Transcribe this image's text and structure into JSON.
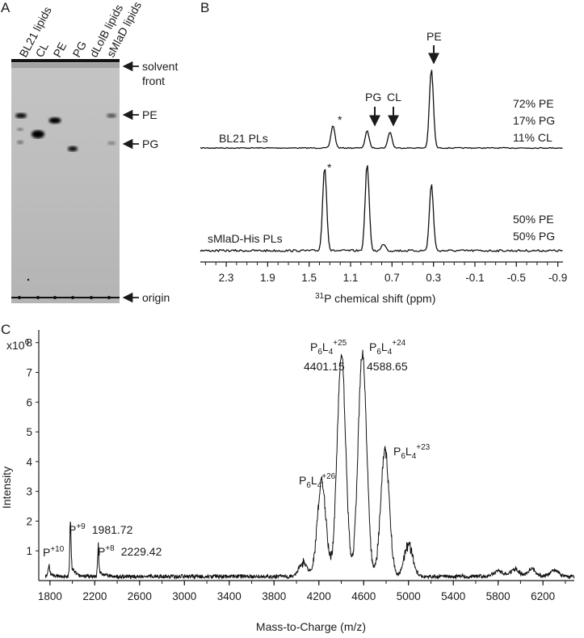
{
  "panel_labels": {
    "a": "A",
    "b": "B",
    "c": "C"
  },
  "panel_a": {
    "lane_labels": [
      "BL21 lipids",
      "CL",
      "PE",
      "PG",
      "dLolB lipids",
      "sMlaD lipids"
    ],
    "markers": {
      "solvent_front_1": "solvent",
      "solvent_front_2": "front",
      "pe": "PE",
      "pg": "PG",
      "origin": "origin"
    }
  },
  "panel_b": {
    "top_trace_label": "BL21 PLs",
    "bottom_trace_label": "sMlaD-His PLs",
    "peak_labels": {
      "pg": "PG",
      "cl": "CL",
      "pe": "PE",
      "star": "*"
    },
    "top_composition": [
      "72% PE",
      "17% PG",
      "11% CL"
    ],
    "bottom_composition": [
      "50% PE",
      "50% PG"
    ],
    "x_tick_labels": [
      "2.3",
      "1.9",
      "1.5",
      "1.1",
      "0.7",
      "0.3",
      "-0.1",
      "-0.5",
      "-0.9"
    ],
    "xlabel_sup": "31",
    "xlabel_rest": "P chemical shift (ppm)"
  },
  "panel_c": {
    "y_exponent_base": "x10",
    "y_exponent": "6",
    "ylabel": "Intensity",
    "xlabel": "Mass-to-Charge (m/z)",
    "annotations": [
      {
        "base": "P",
        "sup": "+10",
        "value": ""
      },
      {
        "base": "P",
        "sup": "+9",
        "value": "1981.72"
      },
      {
        "base": "P",
        "sup": "+8",
        "value": "2229.42"
      },
      {
        "base": "P",
        "sub1": "6",
        "mid": "L",
        "sub2": "4",
        "sup": "+26",
        "value": ""
      },
      {
        "base": "P",
        "sub1": "6",
        "mid": "L",
        "sub2": "4",
        "sup": "+25",
        "value": "4401.15"
      },
      {
        "base": "P",
        "sub1": "6",
        "mid": "L",
        "sub2": "4",
        "sup": "+24",
        "value": "4588.65"
      },
      {
        "base": "P",
        "sub1": "6",
        "mid": "L",
        "sub2": "4",
        "sup": "+23",
        "value": ""
      }
    ]
  },
  "chart_data": [
    {
      "type": "line",
      "panel": "B",
      "xlabel": "31P chemical shift (ppm)",
      "xlim": [
        2.55,
        -0.95
      ],
      "x_reversed": true,
      "x_ticks": [
        2.3,
        1.9,
        1.5,
        1.1,
        0.7,
        0.3,
        -0.1,
        -0.5,
        -0.9
      ],
      "series": [
        {
          "name": "BL21 PLs",
          "peaks": [
            {
              "ppm": 1.27,
              "height": 0.28,
              "label": "*"
            },
            {
              "ppm": 0.94,
              "height": 0.21,
              "label": "PG"
            },
            {
              "ppm": 0.72,
              "height": 0.2,
              "label": "CL"
            },
            {
              "ppm": 0.32,
              "height": 0.98,
              "label": "PE"
            }
          ]
        },
        {
          "name": "sMlaD-His PLs",
          "peaks": [
            {
              "ppm": 1.35,
              "height": 0.95,
              "label": "*"
            },
            {
              "ppm": 0.94,
              "height": 0.98
            },
            {
              "ppm": 0.78,
              "height": 0.08
            },
            {
              "ppm": 0.32,
              "height": 0.75
            }
          ]
        }
      ],
      "grid": false
    },
    {
      "type": "line",
      "panel": "C",
      "xlabel": "Mass-to-Charge (m/z)",
      "ylabel": "Intensity",
      "y_multiplier": "x10^6",
      "xlim": [
        1700,
        6480
      ],
      "ylim": [
        0,
        8.7
      ],
      "x_ticks": [
        1800,
        2200,
        2600,
        3000,
        3400,
        3800,
        4200,
        4600,
        5000,
        5400,
        5800,
        6200
      ],
      "y_ticks": [
        1,
        2,
        3,
        4,
        5,
        6,
        7,
        8
      ],
      "peaks": [
        {
          "mz": 1790,
          "intensity": 0.35,
          "label": "P+10"
        },
        {
          "mz": 1981.72,
          "intensity": 1.5,
          "label": "P+9"
        },
        {
          "mz": 2229.42,
          "intensity": 0.85,
          "label": "P+8"
        },
        {
          "mz": 4060,
          "intensity": 0.45
        },
        {
          "mz": 4225,
          "intensity": 3.2,
          "label": "P6L4+26"
        },
        {
          "mz": 4401.15,
          "intensity": 7.45,
          "label": "P6L4+25"
        },
        {
          "mz": 4588.65,
          "intensity": 7.5,
          "label": "P6L4+24"
        },
        {
          "mz": 4790,
          "intensity": 4.25,
          "label": "P6L4+23"
        },
        {
          "mz": 5000,
          "intensity": 1.05
        },
        {
          "mz": 5800,
          "intensity": 0.18
        },
        {
          "mz": 5950,
          "intensity": 0.25
        },
        {
          "mz": 6100,
          "intensity": 0.25
        },
        {
          "mz": 6300,
          "intensity": 0.2
        }
      ],
      "grid": false
    }
  ]
}
